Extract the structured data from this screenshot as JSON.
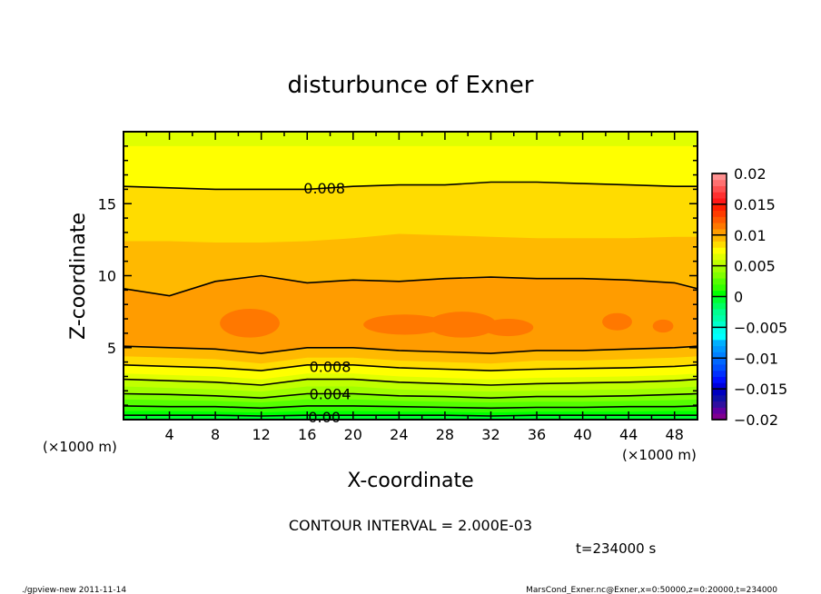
{
  "chart_data": {
    "type": "heatmap",
    "subtype": "filled-contour",
    "title": "disturbunce of Exner",
    "xlabel": "X-coordinate",
    "ylabel": "Z-coordinate",
    "x_unit_label": "(×1000 m)",
    "z_unit_label": "(×1000 m)",
    "xlim": [
      0,
      50
    ],
    "ylim": [
      0,
      20
    ],
    "xticks": [
      4,
      8,
      12,
      16,
      20,
      24,
      28,
      32,
      36,
      40,
      44,
      48
    ],
    "yticks": [
      5,
      10,
      15
    ],
    "x_samples": [
      0,
      4,
      8,
      12,
      16,
      20,
      24,
      28,
      32,
      36,
      40,
      44,
      48,
      50
    ],
    "boundaries": [
      {
        "level": 0.0,
        "line": true,
        "above_color": "#00ff00",
        "z": [
          0.3,
          0.3,
          0.3,
          0.25,
          0.3,
          0.3,
          0.3,
          0.3,
          0.25,
          0.3,
          0.3,
          0.3,
          0.3,
          0.3
        ]
      },
      {
        "level": 0.001,
        "line": false,
        "above_color": "#33ff00",
        "z": [
          0.6,
          0.6,
          0.55,
          0.5,
          0.6,
          0.6,
          0.55,
          0.55,
          0.5,
          0.55,
          0.55,
          0.55,
          0.6,
          0.6
        ]
      },
      {
        "level": 0.002,
        "line": true,
        "above_color": "#55ff00",
        "z": [
          0.95,
          0.9,
          0.9,
          0.8,
          0.95,
          0.95,
          0.9,
          0.85,
          0.8,
          0.85,
          0.85,
          0.9,
          0.9,
          0.95
        ]
      },
      {
        "level": 0.003,
        "line": false,
        "above_color": "#80ff00",
        "z": [
          1.4,
          1.35,
          1.3,
          1.2,
          1.4,
          1.4,
          1.3,
          1.25,
          1.2,
          1.25,
          1.25,
          1.3,
          1.35,
          1.4
        ]
      },
      {
        "level": 0.004,
        "line": true,
        "above_color": "#a0ff00",
        "z": [
          1.8,
          1.75,
          1.65,
          1.5,
          1.8,
          1.8,
          1.65,
          1.6,
          1.5,
          1.6,
          1.6,
          1.65,
          1.75,
          1.8
        ]
      },
      {
        "level": 0.005,
        "line": false,
        "above_color": "#c0ff00",
        "z": [
          2.3,
          2.2,
          2.1,
          1.95,
          2.3,
          2.3,
          2.1,
          2.0,
          1.95,
          2.0,
          2.05,
          2.1,
          2.2,
          2.3
        ]
      },
      {
        "level": 0.006,
        "line": true,
        "above_color": "#e0ff00",
        "z": [
          2.8,
          2.7,
          2.6,
          2.4,
          2.8,
          2.8,
          2.6,
          2.5,
          2.4,
          2.5,
          2.55,
          2.6,
          2.7,
          2.8
        ]
      },
      {
        "level": 0.007,
        "line": false,
        "above_color": "#ffff00",
        "z": [
          3.2,
          3.1,
          3.0,
          2.8,
          3.2,
          3.2,
          3.0,
          2.9,
          2.8,
          2.9,
          2.95,
          3.0,
          3.1,
          3.2
        ]
      },
      {
        "level": 0.008,
        "line": true,
        "above_color": "#ffdc00",
        "z": [
          3.8,
          3.7,
          3.6,
          3.4,
          3.8,
          3.8,
          3.6,
          3.5,
          3.4,
          3.5,
          3.55,
          3.6,
          3.7,
          3.8
        ]
      },
      {
        "level": 0.009,
        "line": false,
        "above_color": "#ffb900",
        "z": [
          4.4,
          4.3,
          4.2,
          3.9,
          4.3,
          4.3,
          4.1,
          4.0,
          3.9,
          4.1,
          4.1,
          4.2,
          4.3,
          4.4
        ]
      },
      {
        "level": 0.01,
        "line": true,
        "above_color": "#ff9c00",
        "z": [
          5.1,
          5.0,
          4.9,
          4.6,
          5.0,
          5.0,
          4.8,
          4.7,
          4.6,
          4.8,
          4.8,
          4.9,
          5.0,
          5.1
        ]
      },
      {
        "level": 0.01,
        "line": true,
        "above_color": "#ffb900",
        "z": [
          9.1,
          8.6,
          9.6,
          10.0,
          9.5,
          9.7,
          9.6,
          9.8,
          9.9,
          9.8,
          9.8,
          9.7,
          9.5,
          9.1
        ]
      },
      {
        "level": 0.009,
        "line": false,
        "above_color": "#ffdc00",
        "z": [
          12.4,
          12.4,
          12.3,
          12.3,
          12.4,
          12.6,
          12.9,
          12.8,
          12.7,
          12.6,
          12.6,
          12.6,
          12.7,
          12.7
        ]
      },
      {
        "level": 0.008,
        "line": true,
        "above_color": "#ffff00",
        "z": [
          16.2,
          16.1,
          16.0,
          16.0,
          16.0,
          16.2,
          16.3,
          16.3,
          16.5,
          16.5,
          16.4,
          16.3,
          16.2,
          16.2
        ]
      },
      {
        "level": 0.007,
        "line": false,
        "above_color": "#e0ff00",
        "z": [
          19.0,
          19.0,
          19.0,
          19.0,
          19.0,
          19.0,
          19.0,
          19.0,
          19.0,
          19.0,
          19.0,
          19.0,
          19.0,
          19.0
        ]
      }
    ],
    "below_zero_color": "#00ff33",
    "maxima_regions": {
      "level": 0.011,
      "color": "#ff7800",
      "ellipses": [
        {
          "cx": 11.0,
          "cz": 6.7,
          "rx": 2.6,
          "rz": 1.0
        },
        {
          "cx": 24.5,
          "cz": 6.6,
          "rx": 3.6,
          "rz": 0.7
        },
        {
          "cx": 29.5,
          "cz": 6.6,
          "rx": 3.0,
          "rz": 0.9
        },
        {
          "cx": 33.5,
          "cz": 6.4,
          "rx": 2.2,
          "rz": 0.6
        },
        {
          "cx": 43.0,
          "cz": 6.8,
          "rx": 1.3,
          "rz": 0.6
        },
        {
          "cx": 47.0,
          "cz": 6.5,
          "rx": 0.9,
          "rz": 0.45
        }
      ]
    },
    "contour_labels": [
      {
        "text": "0.008",
        "x": 17.5,
        "z": 16.1
      },
      {
        "text": "0.008",
        "x": 18.0,
        "z": 3.7
      },
      {
        "text": "0.004",
        "x": 18.0,
        "z": 1.8
      },
      {
        "text": "0.00",
        "x": 17.5,
        "z": 0.2
      }
    ],
    "colorbar": {
      "range": [
        -0.02,
        0.02
      ],
      "step": 0.001,
      "tick_labels": [
        "0.02",
        "0.015",
        "0.01",
        "0.005",
        "0",
        "-0.005",
        "-0.01",
        "-0.015",
        "-0.02"
      ],
      "colors_bottom_to_top": [
        "#800090",
        "#6000a0",
        "#3010a0",
        "#1010a8",
        "#0000c0",
        "#0000dd",
        "#0010ff",
        "#0030ff",
        "#0050ff",
        "#0068ff",
        "#0080ff",
        "#0098ff",
        "#00b0ff",
        "#00ffff",
        "#00ffee",
        "#00ffcc",
        "#00ffaa",
        "#00ff90",
        "#00ff60",
        "#00ff33",
        "#00ff00",
        "#33ff00",
        "#55ff00",
        "#80ff00",
        "#a0ff00",
        "#c0ff00",
        "#e0ff00",
        "#ffff00",
        "#ffdc00",
        "#ffb900",
        "#ff9c00",
        "#ff7800",
        "#ff5a00",
        "#ff3c00",
        "#ff2000",
        "#ff1818",
        "#ff3030",
        "#ff5050",
        "#ff7070",
        "#ff9090"
      ]
    }
  },
  "footer": {
    "contour_interval": "CONTOUR INTERVAL = 2.000E-03",
    "time": "t=234000 s",
    "program": "./gpview-new  2011-11-14",
    "source": "MarsCond_Exner.nc@Exner,x=0:50000,z=0:20000,t=234000"
  }
}
